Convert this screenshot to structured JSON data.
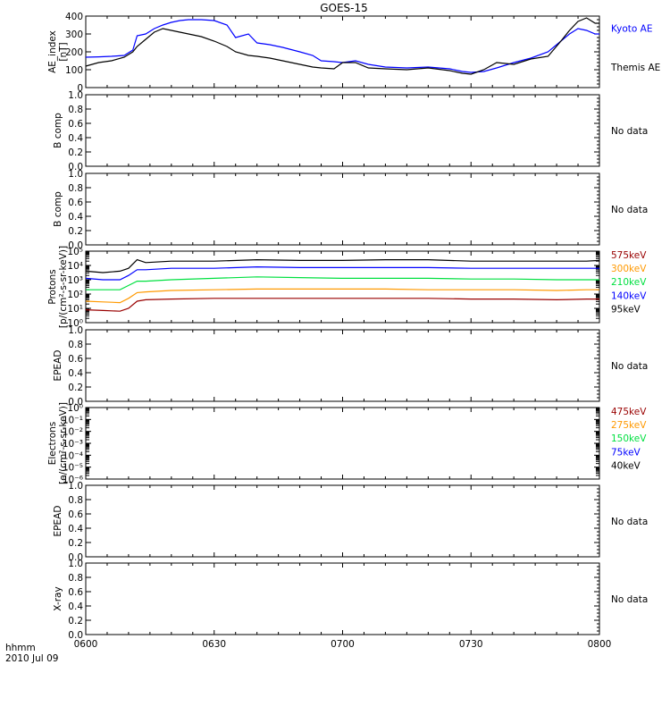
{
  "title": "GOES-15",
  "time_axis": {
    "ticks": [
      "0600",
      "0630",
      "0700",
      "0730",
      "0800"
    ],
    "unit_label": "hhmm",
    "date_label": "2010 Jul 09",
    "range_minutes": [
      0,
      120
    ]
  },
  "no_data_text": "No data",
  "colors": {
    "black": "#000000",
    "blue": "#0000ff",
    "green": "#00e040",
    "orange": "#ff9900",
    "darkred": "#990000"
  },
  "chart_data": [
    {
      "id": "ae",
      "type": "line",
      "ylabel": [
        "AE_index",
        "[nT]"
      ],
      "ylim": [
        0,
        400
      ],
      "yticks": [
        "0",
        "100",
        "200",
        "300",
        "400"
      ],
      "ytick_values": [
        0,
        100,
        200,
        300,
        400
      ],
      "log": false,
      "no_data": false,
      "legend": [
        {
          "name": "Kyoto AE",
          "color": "#0000ff"
        },
        {
          "name": "Themis AE",
          "color": "#000000"
        }
      ],
      "x": [
        0,
        3,
        6,
        9,
        11,
        12,
        14,
        16,
        18,
        20,
        22,
        24,
        27,
        30,
        33,
        35,
        38,
        40,
        43,
        46,
        50,
        53,
        55,
        58,
        60,
        63,
        66,
        70,
        75,
        80,
        85,
        88,
        90,
        93,
        96,
        100,
        104,
        108,
        111,
        113,
        115,
        117,
        119,
        120
      ],
      "series": [
        {
          "name": "Kyoto AE",
          "color": "#0000ff",
          "values": [
            170,
            172,
            175,
            180,
            210,
            290,
            300,
            330,
            350,
            365,
            375,
            380,
            380,
            375,
            350,
            280,
            300,
            250,
            240,
            225,
            200,
            180,
            150,
            145,
            140,
            150,
            130,
            115,
            110,
            115,
            105,
            90,
            85,
            90,
            110,
            140,
            165,
            200,
            260,
            300,
            330,
            320,
            300,
            300
          ]
        },
        {
          "name": "Themis AE",
          "color": "#000000",
          "values": [
            120,
            140,
            150,
            170,
            200,
            230,
            270,
            310,
            330,
            320,
            310,
            300,
            285,
            260,
            230,
            200,
            180,
            175,
            165,
            150,
            130,
            115,
            110,
            105,
            140,
            140,
            110,
            105,
            100,
            110,
            95,
            80,
            75,
            100,
            140,
            130,
            160,
            175,
            260,
            320,
            370,
            390,
            360,
            360
          ]
        }
      ]
    },
    {
      "id": "b1",
      "type": "line",
      "ylabel": [
        "B comp"
      ],
      "ylim": [
        0,
        1
      ],
      "yticks": [
        "0.0",
        "0.2",
        "0.4",
        "0.6",
        "0.8",
        "1.0"
      ],
      "log": false,
      "no_data": true,
      "legend": [],
      "series": []
    },
    {
      "id": "b2",
      "type": "line",
      "ylabel": [
        "B comp"
      ],
      "ylim": [
        0,
        1
      ],
      "yticks": [
        "0.0",
        "0.2",
        "0.4",
        "0.6",
        "0.8",
        "1.0"
      ],
      "log": false,
      "no_data": true,
      "legend": [],
      "series": []
    },
    {
      "id": "protons",
      "type": "line",
      "ylabel": [
        "Protons",
        "[p/(cm²-s-sr-keV)]"
      ],
      "ylim": [
        0,
        5
      ],
      "yticks": [
        "10⁰",
        "10¹",
        "10²",
        "10³",
        "10⁴",
        "10⁵"
      ],
      "ytick_values": [
        0,
        1,
        2,
        3,
        4,
        5
      ],
      "log": true,
      "no_data": false,
      "legend": [
        {
          "name": "575keV",
          "color": "#990000"
        },
        {
          "name": "300keV",
          "color": "#ff9900"
        },
        {
          "name": "210keV",
          "color": "#00e040"
        },
        {
          "name": "140keV",
          "color": "#0000ff"
        },
        {
          "name": "95keV",
          "color": "#000000"
        }
      ],
      "x": [
        0,
        4,
        8,
        10,
        12,
        14,
        20,
        30,
        40,
        50,
        60,
        70,
        80,
        90,
        100,
        110,
        117,
        120
      ],
      "series": [
        {
          "name": "575keV",
          "color": "#990000",
          "values": [
            0.9,
            0.85,
            0.8,
            1.0,
            1.5,
            1.6,
            1.65,
            1.7,
            1.7,
            1.7,
            1.7,
            1.7,
            1.7,
            1.65,
            1.65,
            1.6,
            1.65,
            1.65
          ]
        },
        {
          "name": "300keV",
          "color": "#ff9900",
          "values": [
            1.5,
            1.45,
            1.4,
            1.7,
            2.1,
            2.15,
            2.25,
            2.3,
            2.35,
            2.35,
            2.35,
            2.35,
            2.3,
            2.3,
            2.3,
            2.25,
            2.3,
            2.3
          ]
        },
        {
          "name": "210keV",
          "color": "#00e040",
          "values": [
            2.3,
            2.3,
            2.3,
            2.6,
            2.9,
            2.9,
            3.0,
            3.1,
            3.2,
            3.15,
            3.1,
            3.1,
            3.1,
            3.05,
            3.05,
            3.0,
            3.0,
            3.0
          ]
        },
        {
          "name": "140keV",
          "color": "#0000ff",
          "values": [
            3.1,
            3.0,
            3.0,
            3.3,
            3.7,
            3.7,
            3.8,
            3.8,
            3.9,
            3.85,
            3.85,
            3.85,
            3.85,
            3.8,
            3.8,
            3.8,
            3.8,
            3.8
          ]
        },
        {
          "name": "95keV",
          "color": "#000000",
          "values": [
            3.6,
            3.5,
            3.6,
            3.8,
            4.4,
            4.2,
            4.3,
            4.3,
            4.4,
            4.35,
            4.35,
            4.4,
            4.4,
            4.3,
            4.3,
            4.3,
            4.3,
            4.35
          ]
        }
      ]
    },
    {
      "id": "epead1",
      "type": "line",
      "ylabel": [
        "EPEAD"
      ],
      "ylim": [
        0,
        1
      ],
      "yticks": [
        "0.0",
        "0.2",
        "0.4",
        "0.6",
        "0.8",
        "1.0"
      ],
      "log": false,
      "no_data": true,
      "legend": [],
      "series": []
    },
    {
      "id": "electrons",
      "type": "line",
      "ylabel": [
        "Electrons",
        "[e/(cm²-s-sr-keV)]"
      ],
      "ylim": [
        -6,
        0
      ],
      "yticks": [
        "10⁻⁶",
        "10⁻⁵",
        "10⁻⁴",
        "10⁻³",
        "10⁻²",
        "10⁻¹",
        "10⁰"
      ],
      "ytick_values": [
        -6,
        -5,
        -4,
        -3,
        -2,
        -1,
        0
      ],
      "log": true,
      "no_data": false,
      "legend": [
        {
          "name": "475keV",
          "color": "#990000"
        },
        {
          "name": "275keV",
          "color": "#ff9900"
        },
        {
          "name": "150keV",
          "color": "#00e040"
        },
        {
          "name": "75keV",
          "color": "#0000ff"
        },
        {
          "name": "40keV",
          "color": "#000000"
        }
      ],
      "series": []
    },
    {
      "id": "epead2",
      "type": "line",
      "ylabel": [
        "EPEAD"
      ],
      "ylim": [
        0,
        1
      ],
      "yticks": [
        "0.0",
        "0.2",
        "0.4",
        "0.6",
        "0.8",
        "1.0"
      ],
      "log": false,
      "no_data": true,
      "legend": [],
      "series": []
    },
    {
      "id": "xray",
      "type": "line",
      "ylabel": [
        "X-ray"
      ],
      "ylim": [
        0,
        1
      ],
      "yticks": [
        "0.0",
        "0.2",
        "0.4",
        "0.6",
        "0.8",
        "1.0"
      ],
      "log": false,
      "no_data": true,
      "legend": [],
      "series": []
    }
  ]
}
